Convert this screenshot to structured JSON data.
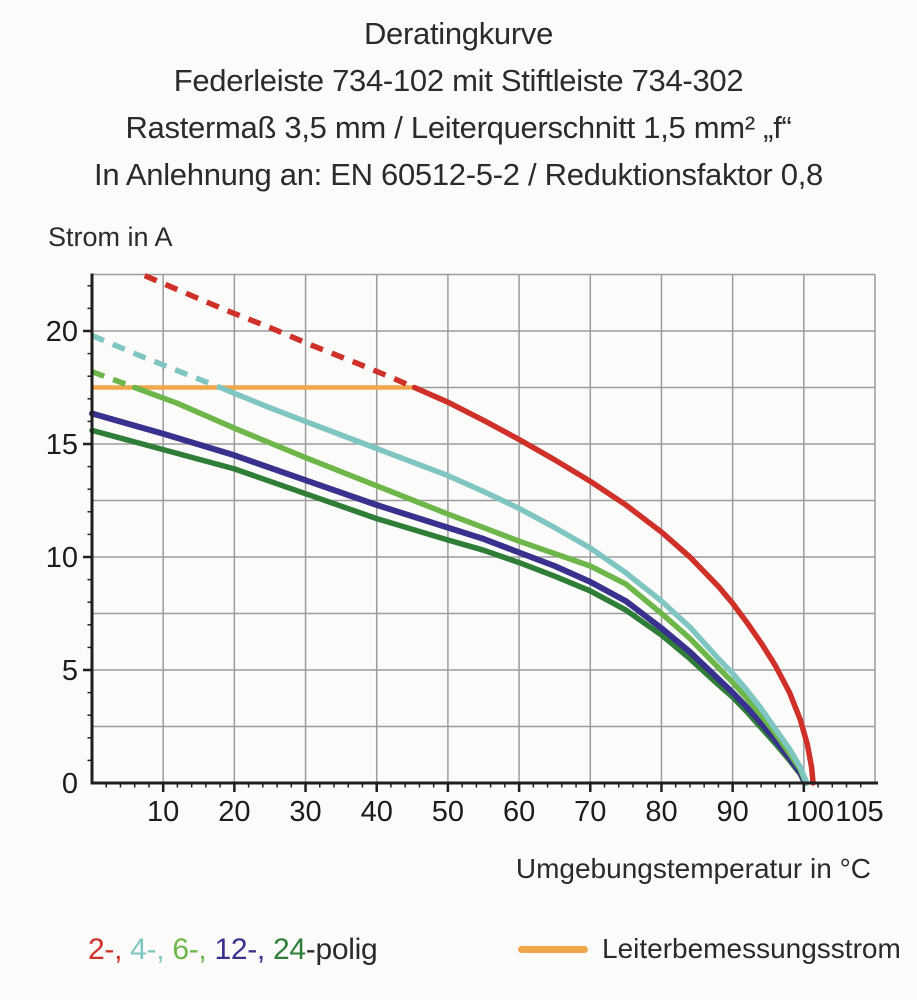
{
  "title": {
    "line1": "Deratingkurve",
    "line2": "Federleiste 734-102 mit Stiftleiste 734-302",
    "line3": "Rastermaß 3,5 mm / Leiterquerschnitt 1,5 mm² „f“",
    "line4": "In Anlehnung an: EN 60512-5-2 / Reduktionsfaktor 0,8"
  },
  "axes": {
    "y_title": "Strom in A",
    "x_title": "Umgebungstemperatur in °C"
  },
  "legend": {
    "poles": {
      "items": [
        {
          "text": "2-,",
          "color": "#cf3027"
        },
        {
          "text": "4-,",
          "color": "#7fc6c3"
        },
        {
          "text": "6-,",
          "color": "#6db64a"
        },
        {
          "text": "12-,",
          "color": "#38318e"
        },
        {
          "text": "24",
          "color": "#2e7e38"
        }
      ],
      "suffix": "-polig"
    },
    "rated": {
      "label": "Leiterbemessungsstrom",
      "color": "#f0a64b"
    }
  },
  "chart_data": {
    "type": "line",
    "title": "Deratingkurve",
    "xlabel": "Umgebungstemperatur in °C",
    "ylabel": "Strom in A",
    "xlim": [
      0,
      110
    ],
    "ylim": [
      0,
      22.5
    ],
    "grid": true,
    "x_grid_step": 10,
    "y_grid_step": 2.5,
    "x_minor_tick_step": 2,
    "y_minor_tick_step": 1,
    "x_major_tick_step": 10,
    "y_major_tick_step": 5,
    "x_tick_labels": [
      {
        "v": 10,
        "t": "10"
      },
      {
        "v": 20,
        "t": "20"
      },
      {
        "v": 30,
        "t": "30"
      },
      {
        "v": 40,
        "t": "40"
      },
      {
        "v": 50,
        "t": "50"
      },
      {
        "v": 60,
        "t": "60"
      },
      {
        "v": 70,
        "t": "70"
      },
      {
        "v": 80,
        "t": "80"
      },
      {
        "v": 90,
        "t": "90"
      },
      {
        "v": 100,
        "t": "100",
        "dx": 6
      },
      {
        "v": 105,
        "t": "105",
        "dx": 20
      }
    ],
    "y_tick_labels": [
      {
        "v": 0,
        "t": "0"
      },
      {
        "v": 5,
        "t": "5"
      },
      {
        "v": 10,
        "t": "10"
      },
      {
        "v": 15,
        "t": "15"
      },
      {
        "v": 20,
        "t": "20"
      }
    ],
    "rated_current_line": {
      "label": "Leiterbemessungsstrom",
      "color": "#f0a64b",
      "y": 17.5,
      "x_start": 0,
      "x_end": 45.3
    },
    "series": [
      {
        "name": "2-polig",
        "color": "#cf3027",
        "dashed_points": [
          [
            7.4,
            22.45
          ],
          [
            13,
            21.7
          ],
          [
            19,
            20.9
          ],
          [
            25,
            20.15
          ],
          [
            31,
            19.35
          ],
          [
            37,
            18.6
          ],
          [
            42,
            17.95
          ],
          [
            45.3,
            17.5
          ]
        ],
        "solid_points": [
          [
            45.3,
            17.5
          ],
          [
            50,
            16.85
          ],
          [
            55,
            16.05
          ],
          [
            60,
            15.2
          ],
          [
            65,
            14.3
          ],
          [
            70,
            13.35
          ],
          [
            75,
            12.3
          ],
          [
            80,
            11.1
          ],
          [
            84,
            10.0
          ],
          [
            88,
            8.7
          ],
          [
            90,
            7.95
          ],
          [
            92,
            7.1
          ],
          [
            94,
            6.2
          ],
          [
            96,
            5.2
          ],
          [
            98,
            4.0
          ],
          [
            99.5,
            2.8
          ],
          [
            100.5,
            1.7
          ],
          [
            101.1,
            0.7
          ],
          [
            101.3,
            0
          ]
        ]
      },
      {
        "name": "4-polig",
        "color": "#7fc6c3",
        "dashed_points": [
          [
            0,
            19.8
          ],
          [
            6,
            19.0
          ],
          [
            12,
            18.25
          ],
          [
            18,
            17.5
          ]
        ],
        "solid_points": [
          [
            18,
            17.5
          ],
          [
            25,
            16.6
          ],
          [
            30,
            16.0
          ],
          [
            35,
            15.4
          ],
          [
            40,
            14.8
          ],
          [
            45,
            14.2
          ],
          [
            50,
            13.6
          ],
          [
            55,
            12.9
          ],
          [
            60,
            12.15
          ],
          [
            65,
            11.3
          ],
          [
            70,
            10.4
          ],
          [
            75,
            9.3
          ],
          [
            80,
            8.05
          ],
          [
            84,
            6.9
          ],
          [
            88,
            5.5
          ],
          [
            90,
            4.85
          ],
          [
            92,
            4.1
          ],
          [
            94,
            3.3
          ],
          [
            96,
            2.4
          ],
          [
            98,
            1.5
          ],
          [
            99.5,
            0.7
          ],
          [
            100.4,
            0
          ]
        ]
      },
      {
        "name": "6-polig",
        "color": "#6db64a",
        "dashed_points": [
          [
            0,
            18.2
          ],
          [
            3,
            17.85
          ],
          [
            6,
            17.5
          ]
        ],
        "solid_points": [
          [
            6,
            17.5
          ],
          [
            12,
            16.8
          ],
          [
            20,
            15.7
          ],
          [
            30,
            14.4
          ],
          [
            40,
            13.15
          ],
          [
            50,
            11.9
          ],
          [
            55,
            11.3
          ],
          [
            60,
            10.7
          ],
          [
            65,
            10.15
          ],
          [
            70,
            9.6
          ],
          [
            75,
            8.8
          ],
          [
            80,
            7.5
          ],
          [
            84,
            6.4
          ],
          [
            88,
            5.1
          ],
          [
            90,
            4.45
          ],
          [
            92,
            3.75
          ],
          [
            94,
            3.0
          ],
          [
            96,
            2.2
          ],
          [
            98,
            1.3
          ],
          [
            99.5,
            0.6
          ],
          [
            100.3,
            0
          ]
        ]
      },
      {
        "name": "12-polig",
        "color": "#38318e",
        "dashed_points": [],
        "solid_points": [
          [
            0,
            16.35
          ],
          [
            10,
            15.45
          ],
          [
            20,
            14.5
          ],
          [
            30,
            13.4
          ],
          [
            40,
            12.3
          ],
          [
            50,
            11.3
          ],
          [
            55,
            10.8
          ],
          [
            60,
            10.2
          ],
          [
            65,
            9.6
          ],
          [
            70,
            8.9
          ],
          [
            75,
            8.05
          ],
          [
            80,
            6.85
          ],
          [
            84,
            5.8
          ],
          [
            88,
            4.6
          ],
          [
            90,
            4.0
          ],
          [
            92,
            3.35
          ],
          [
            94,
            2.65
          ],
          [
            96,
            1.9
          ],
          [
            98,
            1.1
          ],
          [
            99.5,
            0.45
          ],
          [
            100.2,
            0
          ]
        ]
      },
      {
        "name": "24-polig",
        "color": "#2e7e38",
        "dashed_points": [],
        "solid_points": [
          [
            0,
            15.6
          ],
          [
            10,
            14.75
          ],
          [
            20,
            13.9
          ],
          [
            30,
            12.8
          ],
          [
            40,
            11.7
          ],
          [
            50,
            10.75
          ],
          [
            55,
            10.3
          ],
          [
            60,
            9.75
          ],
          [
            65,
            9.15
          ],
          [
            70,
            8.5
          ],
          [
            75,
            7.65
          ],
          [
            80,
            6.55
          ],
          [
            84,
            5.5
          ],
          [
            88,
            4.35
          ],
          [
            90,
            3.8
          ],
          [
            92,
            3.15
          ],
          [
            94,
            2.45
          ],
          [
            96,
            1.75
          ],
          [
            98,
            1.0
          ],
          [
            99.5,
            0.4
          ],
          [
            100.1,
            0
          ]
        ]
      }
    ],
    "legend_position": "bottom"
  },
  "style_colors": {
    "grid": "#9c9c9c",
    "axis": "#1f1f1f",
    "tick_label": "#1c1c1c",
    "background": "#fbfbfa"
  }
}
